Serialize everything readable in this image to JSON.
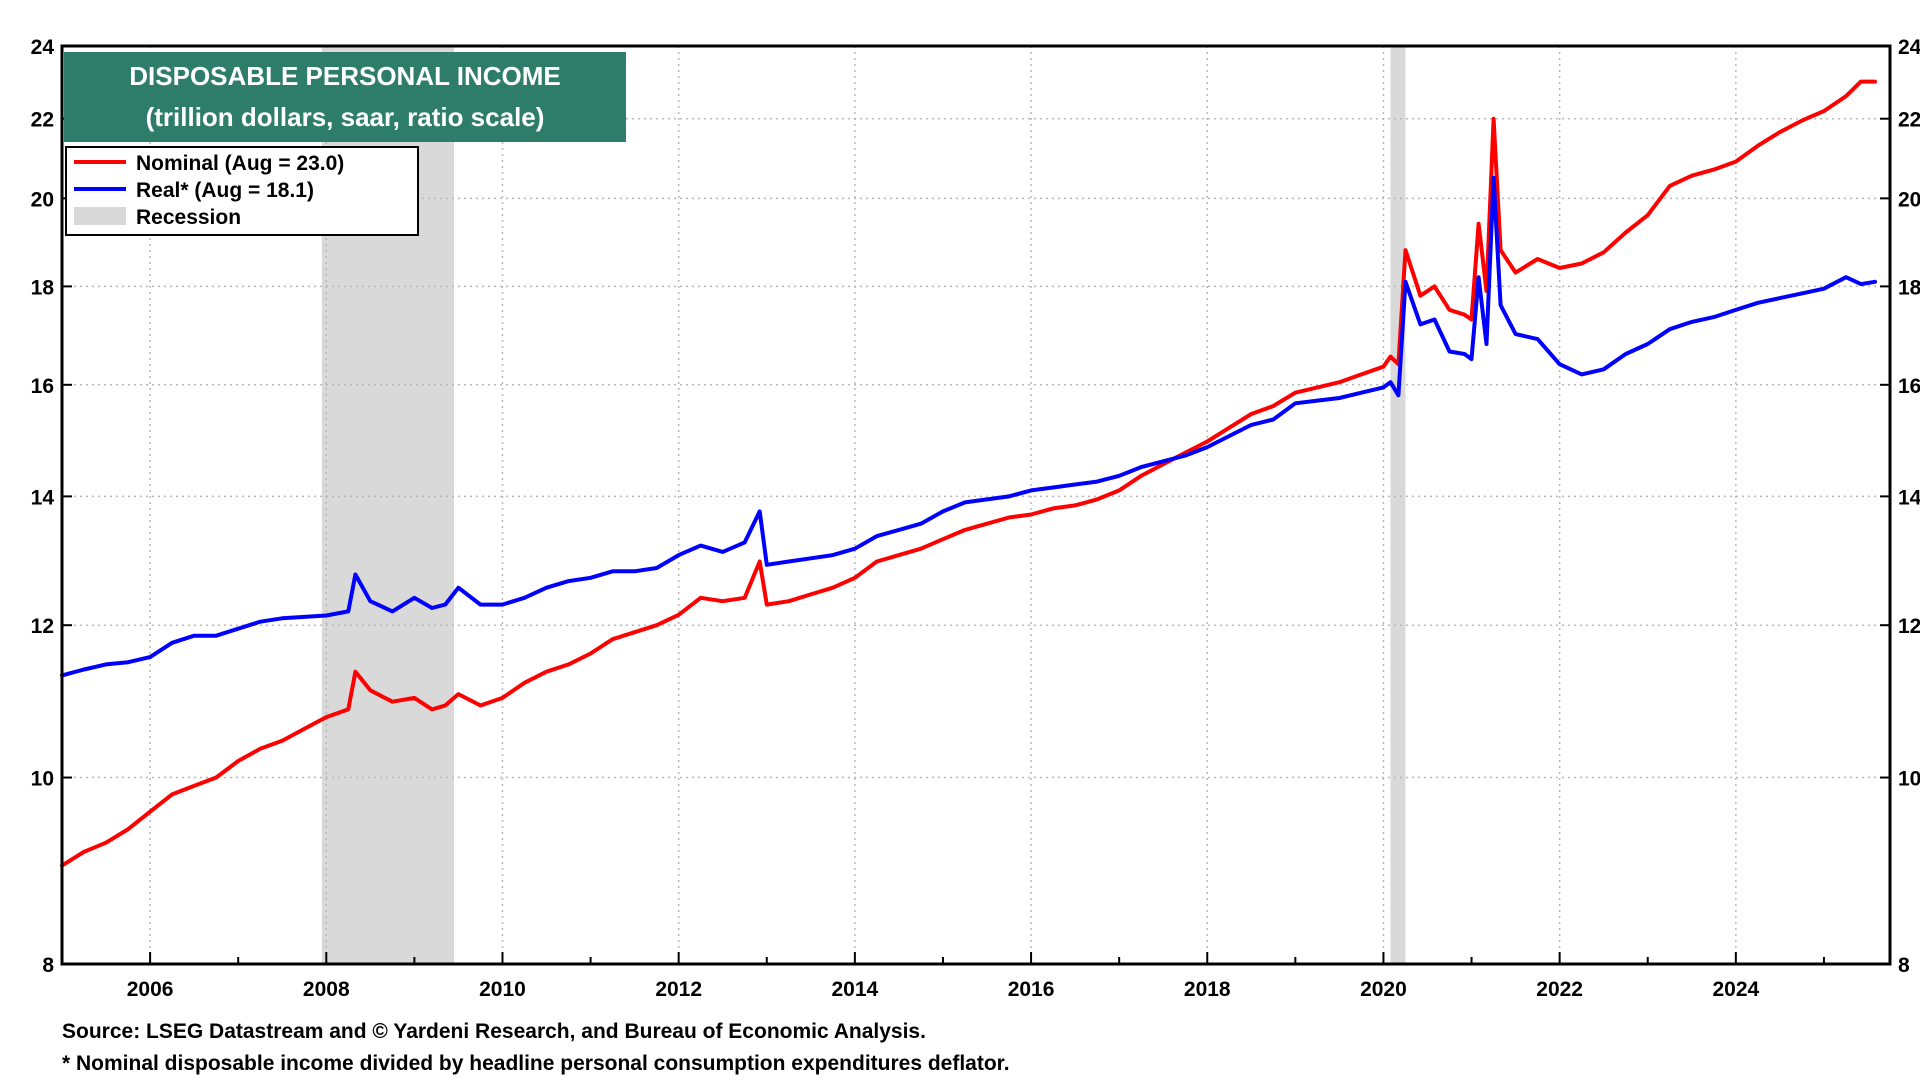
{
  "chart_data": {
    "type": "line",
    "title": "DISPOSABLE PERSONAL INCOME",
    "subtitle": "(trillion dollars, saar, ratio scale)",
    "y_scale": "log",
    "ylim": [
      8,
      24
    ],
    "y_ticks": [
      8,
      10,
      12,
      14,
      16,
      18,
      20,
      22,
      24
    ],
    "xlim": [
      2005.0,
      2025.75
    ],
    "x_ticks": [
      "2006",
      "2008",
      "2010",
      "2012",
      "2014",
      "2016",
      "2018",
      "2020",
      "2022",
      "2024"
    ],
    "grid": true,
    "legend_position": "top-left",
    "header_color": "#2e7d6b",
    "recessions": [
      {
        "start": 2007.95,
        "end": 2009.45
      },
      {
        "start": 2020.08,
        "end": 2020.25
      }
    ],
    "recession_label": "Recession",
    "recession_color": "#d9d9d9",
    "series": [
      {
        "name": "Nominal (Aug = 23.0)",
        "color": "#ff0000",
        "points": [
          [
            2005.0,
            9.0
          ],
          [
            2005.25,
            9.15
          ],
          [
            2005.5,
            9.25
          ],
          [
            2005.75,
            9.4
          ],
          [
            2006.0,
            9.6
          ],
          [
            2006.25,
            9.8
          ],
          [
            2006.5,
            9.9
          ],
          [
            2006.75,
            10.0
          ],
          [
            2007.0,
            10.2
          ],
          [
            2007.25,
            10.35
          ],
          [
            2007.5,
            10.45
          ],
          [
            2007.75,
            10.6
          ],
          [
            2008.0,
            10.75
          ],
          [
            2008.25,
            10.85
          ],
          [
            2008.33,
            11.35
          ],
          [
            2008.5,
            11.1
          ],
          [
            2008.75,
            10.95
          ],
          [
            2009.0,
            11.0
          ],
          [
            2009.2,
            10.85
          ],
          [
            2009.35,
            10.9
          ],
          [
            2009.5,
            11.05
          ],
          [
            2009.75,
            10.9
          ],
          [
            2010.0,
            11.0
          ],
          [
            2010.25,
            11.2
          ],
          [
            2010.5,
            11.35
          ],
          [
            2010.75,
            11.45
          ],
          [
            2011.0,
            11.6
          ],
          [
            2011.25,
            11.8
          ],
          [
            2011.5,
            11.9
          ],
          [
            2011.75,
            12.0
          ],
          [
            2012.0,
            12.15
          ],
          [
            2012.25,
            12.4
          ],
          [
            2012.5,
            12.35
          ],
          [
            2012.75,
            12.4
          ],
          [
            2012.92,
            12.95
          ],
          [
            2013.0,
            12.3
          ],
          [
            2013.25,
            12.35
          ],
          [
            2013.5,
            12.45
          ],
          [
            2013.75,
            12.55
          ],
          [
            2014.0,
            12.7
          ],
          [
            2014.25,
            12.95
          ],
          [
            2014.5,
            13.05
          ],
          [
            2014.75,
            13.15
          ],
          [
            2015.0,
            13.3
          ],
          [
            2015.25,
            13.45
          ],
          [
            2015.5,
            13.55
          ],
          [
            2015.75,
            13.65
          ],
          [
            2016.0,
            13.7
          ],
          [
            2016.25,
            13.8
          ],
          [
            2016.5,
            13.85
          ],
          [
            2016.75,
            13.95
          ],
          [
            2017.0,
            14.1
          ],
          [
            2017.25,
            14.35
          ],
          [
            2017.5,
            14.55
          ],
          [
            2017.75,
            14.75
          ],
          [
            2018.0,
            14.95
          ],
          [
            2018.25,
            15.2
          ],
          [
            2018.5,
            15.45
          ],
          [
            2018.75,
            15.6
          ],
          [
            2019.0,
            15.85
          ],
          [
            2019.25,
            15.95
          ],
          [
            2019.5,
            16.05
          ],
          [
            2019.75,
            16.2
          ],
          [
            2020.0,
            16.35
          ],
          [
            2020.08,
            16.55
          ],
          [
            2020.17,
            16.4
          ],
          [
            2020.25,
            18.8
          ],
          [
            2020.42,
            17.8
          ],
          [
            2020.58,
            18.0
          ],
          [
            2020.75,
            17.5
          ],
          [
            2020.92,
            17.4
          ],
          [
            2021.0,
            17.3
          ],
          [
            2021.08,
            19.4
          ],
          [
            2021.17,
            17.9
          ],
          [
            2021.25,
            22.0
          ],
          [
            2021.33,
            18.8
          ],
          [
            2021.5,
            18.3
          ],
          [
            2021.75,
            18.6
          ],
          [
            2022.0,
            18.4
          ],
          [
            2022.25,
            18.5
          ],
          [
            2022.5,
            18.75
          ],
          [
            2022.75,
            19.2
          ],
          [
            2023.0,
            19.6
          ],
          [
            2023.25,
            20.3
          ],
          [
            2023.5,
            20.55
          ],
          [
            2023.75,
            20.7
          ],
          [
            2024.0,
            20.9
          ],
          [
            2024.25,
            21.3
          ],
          [
            2024.5,
            21.65
          ],
          [
            2024.75,
            21.95
          ],
          [
            2025.0,
            22.2
          ],
          [
            2025.25,
            22.6
          ],
          [
            2025.42,
            23.0
          ],
          [
            2025.58,
            23.0
          ]
        ]
      },
      {
        "name": "Real* (Aug = 18.1)",
        "color": "#0000ff",
        "points": [
          [
            2005.0,
            11.3
          ],
          [
            2005.25,
            11.38
          ],
          [
            2005.5,
            11.45
          ],
          [
            2005.75,
            11.48
          ],
          [
            2006.0,
            11.55
          ],
          [
            2006.25,
            11.75
          ],
          [
            2006.5,
            11.85
          ],
          [
            2006.75,
            11.85
          ],
          [
            2007.0,
            11.95
          ],
          [
            2007.25,
            12.05
          ],
          [
            2007.5,
            12.1
          ],
          [
            2007.75,
            12.12
          ],
          [
            2008.0,
            12.14
          ],
          [
            2008.25,
            12.2
          ],
          [
            2008.33,
            12.75
          ],
          [
            2008.5,
            12.35
          ],
          [
            2008.75,
            12.2
          ],
          [
            2009.0,
            12.4
          ],
          [
            2009.2,
            12.25
          ],
          [
            2009.35,
            12.3
          ],
          [
            2009.5,
            12.55
          ],
          [
            2009.75,
            12.3
          ],
          [
            2010.0,
            12.3
          ],
          [
            2010.25,
            12.4
          ],
          [
            2010.5,
            12.55
          ],
          [
            2010.75,
            12.65
          ],
          [
            2011.0,
            12.7
          ],
          [
            2011.25,
            12.8
          ],
          [
            2011.5,
            12.8
          ],
          [
            2011.75,
            12.85
          ],
          [
            2012.0,
            13.05
          ],
          [
            2012.25,
            13.2
          ],
          [
            2012.5,
            13.1
          ],
          [
            2012.75,
            13.25
          ],
          [
            2012.92,
            13.75
          ],
          [
            2013.0,
            12.9
          ],
          [
            2013.25,
            12.95
          ],
          [
            2013.5,
            13.0
          ],
          [
            2013.75,
            13.05
          ],
          [
            2014.0,
            13.15
          ],
          [
            2014.25,
            13.35
          ],
          [
            2014.5,
            13.45
          ],
          [
            2014.75,
            13.55
          ],
          [
            2015.0,
            13.75
          ],
          [
            2015.25,
            13.9
          ],
          [
            2015.5,
            13.95
          ],
          [
            2015.75,
            14.0
          ],
          [
            2016.0,
            14.1
          ],
          [
            2016.25,
            14.15
          ],
          [
            2016.5,
            14.2
          ],
          [
            2016.75,
            14.25
          ],
          [
            2017.0,
            14.35
          ],
          [
            2017.25,
            14.5
          ],
          [
            2017.5,
            14.6
          ],
          [
            2017.75,
            14.7
          ],
          [
            2018.0,
            14.85
          ],
          [
            2018.25,
            15.05
          ],
          [
            2018.5,
            15.25
          ],
          [
            2018.75,
            15.35
          ],
          [
            2019.0,
            15.65
          ],
          [
            2019.25,
            15.7
          ],
          [
            2019.5,
            15.75
          ],
          [
            2019.75,
            15.85
          ],
          [
            2020.0,
            15.95
          ],
          [
            2020.08,
            16.05
          ],
          [
            2020.17,
            15.8
          ],
          [
            2020.25,
            18.1
          ],
          [
            2020.42,
            17.2
          ],
          [
            2020.58,
            17.3
          ],
          [
            2020.75,
            16.65
          ],
          [
            2020.92,
            16.6
          ],
          [
            2021.0,
            16.5
          ],
          [
            2021.08,
            18.2
          ],
          [
            2021.17,
            16.8
          ],
          [
            2021.25,
            20.5
          ],
          [
            2021.33,
            17.6
          ],
          [
            2021.5,
            17.0
          ],
          [
            2021.75,
            16.9
          ],
          [
            2022.0,
            16.4
          ],
          [
            2022.25,
            16.2
          ],
          [
            2022.5,
            16.3
          ],
          [
            2022.75,
            16.6
          ],
          [
            2023.0,
            16.8
          ],
          [
            2023.25,
            17.1
          ],
          [
            2023.5,
            17.25
          ],
          [
            2023.75,
            17.35
          ],
          [
            2024.0,
            17.5
          ],
          [
            2024.25,
            17.65
          ],
          [
            2024.5,
            17.75
          ],
          [
            2024.75,
            17.85
          ],
          [
            2025.0,
            17.95
          ],
          [
            2025.25,
            18.2
          ],
          [
            2025.42,
            18.05
          ],
          [
            2025.58,
            18.1
          ]
        ]
      }
    ],
    "footnotes": [
      "Source: LSEG Datastream and © Yardeni Research, and Bureau of Economic Analysis.",
      "* Nominal disposable income divided by headline personal consumption expenditures deflator."
    ]
  }
}
